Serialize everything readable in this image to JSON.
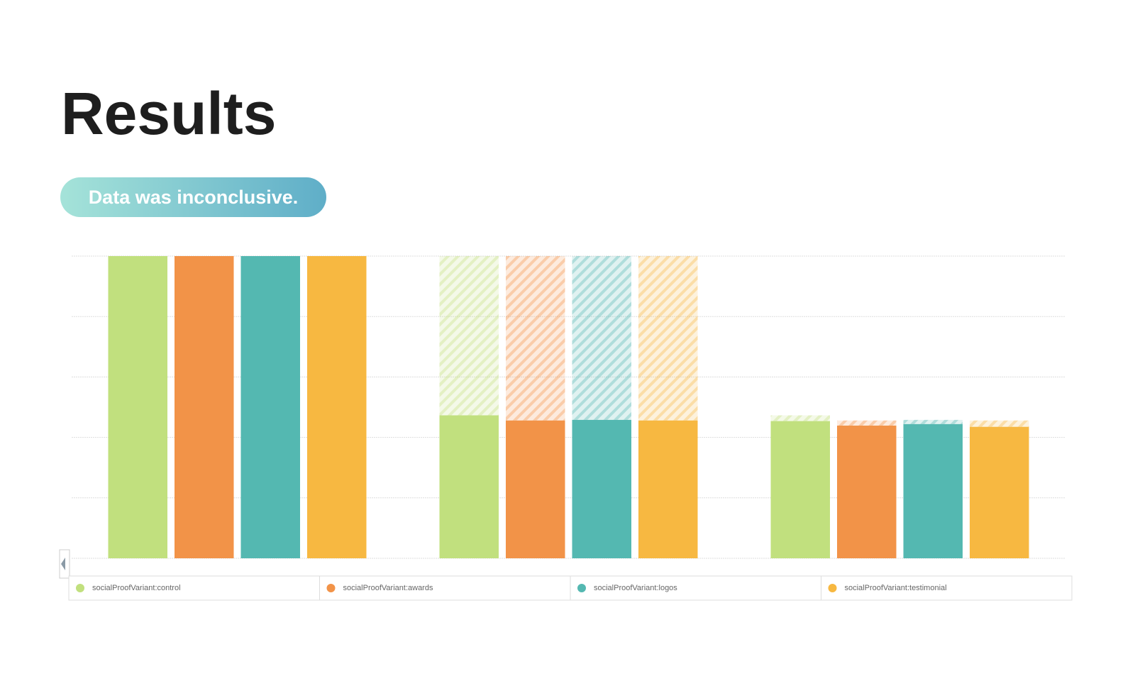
{
  "chart_data": {
    "type": "funnel-bar",
    "title": "Results",
    "subtitle": "Data was inconclusive.",
    "categories": [
      null,
      null,
      null
    ],
    "series": [
      {
        "name": "socialProofVariant:control",
        "color": "#c1e07e",
        "values": [
          100,
          47.3,
          45.4
        ]
      },
      {
        "name": "socialProofVariant:awards",
        "color": "#f29348",
        "values": [
          100,
          45.6,
          43.9
        ]
      },
      {
        "name": "socialProofVariant:logos",
        "color": "#54b8b1",
        "values": [
          100,
          45.8,
          44.4
        ]
      },
      {
        "name": "socialProofVariant:testimonial",
        "color": "#f7b841",
        "values": [
          100,
          45.6,
          43.5
        ]
      }
    ],
    "ylim": [
      0,
      100
    ],
    "yticks": [
      0,
      20,
      40,
      60,
      80,
      100
    ],
    "grid": true,
    "legend": "bottom"
  }
}
